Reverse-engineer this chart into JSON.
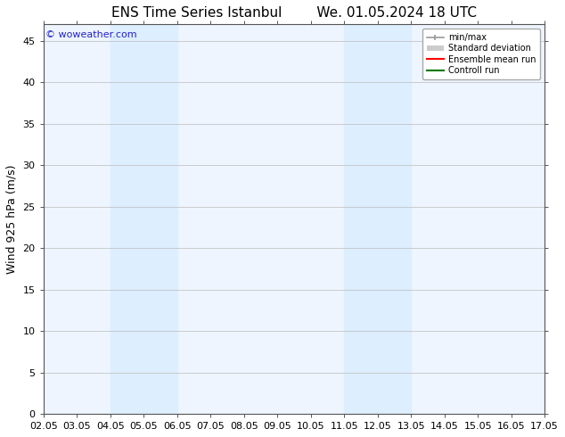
{
  "title": "ENS Time Series Istanbul        We. 01.05.2024 18 UTC",
  "ylabel": "Wind 925 hPa (m/s)",
  "watermark": "© woweather.com",
  "x_ticks": [
    "02.05",
    "03.05",
    "04.05",
    "05.05",
    "06.05",
    "07.05",
    "08.05",
    "09.05",
    "10.05",
    "11.05",
    "12.05",
    "13.05",
    "14.05",
    "15.05",
    "16.05",
    "17.05"
  ],
  "x_tick_positions": [
    0,
    1,
    2,
    3,
    4,
    5,
    6,
    7,
    8,
    9,
    10,
    11,
    12,
    13,
    14,
    15
  ],
  "ylim": [
    0,
    47
  ],
  "y_ticks": [
    0,
    5,
    10,
    15,
    20,
    25,
    30,
    35,
    40,
    45
  ],
  "shaded_regions": [
    {
      "xstart": 2,
      "xend": 4,
      "color": "#ddeeff"
    },
    {
      "xstart": 9,
      "xend": 11,
      "color": "#ddeeff"
    }
  ],
  "bg_color": "#ffffff",
  "plot_bg_color": "#eef5ff",
  "legend_items": [
    {
      "label": "min/max",
      "color": "#999999",
      "lw": 1.2
    },
    {
      "label": "Standard deviation",
      "color": "#cccccc",
      "lw": 6
    },
    {
      "label": "Ensemble mean run",
      "color": "#ff0000",
      "lw": 1.5
    },
    {
      "label": "Controll run",
      "color": "#007700",
      "lw": 1.5
    }
  ],
  "title_fontsize": 11,
  "axis_fontsize": 9,
  "tick_fontsize": 8,
  "watermark_color": "#2222cc",
  "watermark_fontsize": 8
}
